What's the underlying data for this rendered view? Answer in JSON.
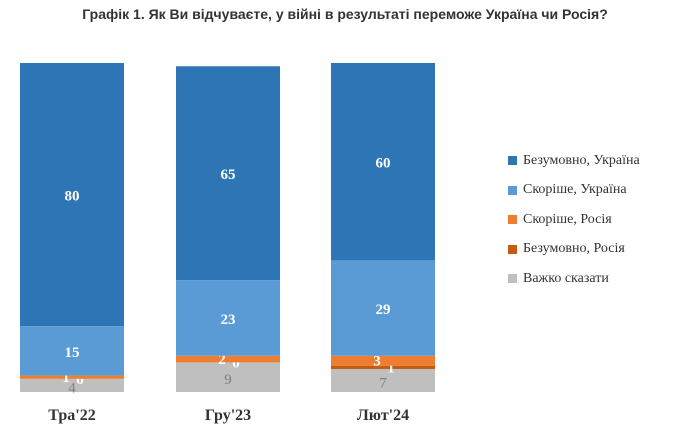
{
  "chart_data": {
    "type": "bar",
    "stacked": true,
    "title": "Графік 1. Як Ви відчуваєте, у війні в результаті переможе Україна чи Росія?",
    "categories": [
      "Тра'22",
      "Гру'23",
      "Лют'24"
    ],
    "series": [
      {
        "name": "Важко сказати",
        "color": "#bfbfbf",
        "label_color": "#7f7f7f",
        "values": [
          4,
          9,
          7
        ]
      },
      {
        "name": "Безумовно, Росія",
        "color": "#c55a11",
        "label_color": "#ffffff",
        "values": [
          0,
          0,
          1
        ]
      },
      {
        "name": "Скоріше, Росія",
        "color": "#ed7d31",
        "label_color": "#ffffff",
        "values": [
          1,
          2,
          3
        ]
      },
      {
        "name": "Скоріше, Україна",
        "color": "#5b9bd5",
        "label_color": "#ffffff",
        "values": [
          15,
          23,
          29
        ]
      },
      {
        "name": "Безумовно, Україна",
        "color": "#2e75b6",
        "label_color": "#ffffff",
        "values": [
          80,
          65,
          60
        ]
      }
    ],
    "legend_order": [
      "Безумовно, Україна",
      "Скоріше, Україна",
      "Скоріше, Росія",
      "Безумовно, Росія",
      "Важко сказати"
    ],
    "legend": "right",
    "ylim": [
      0,
      100
    ]
  }
}
